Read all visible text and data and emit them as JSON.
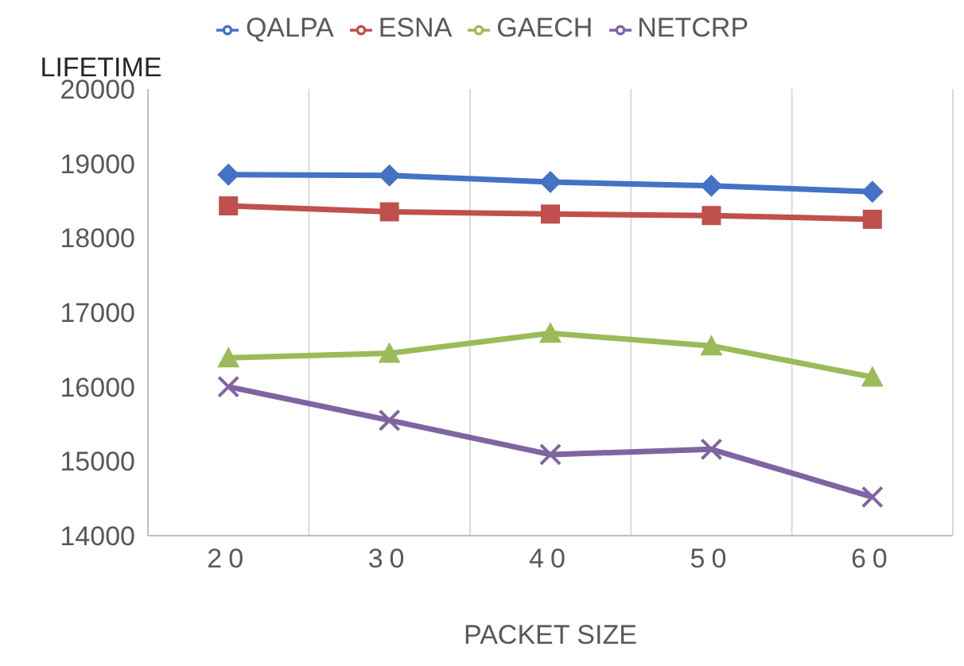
{
  "chart_data": {
    "type": "line",
    "ylabel": "LIFETIME",
    "xlabel": "PACKET SIZE",
    "categories": [
      "20",
      "30",
      "40",
      "50",
      "60"
    ],
    "series": [
      {
        "name": "QALPA",
        "color": "#4472c4",
        "marker": "diamond",
        "values": [
          18850,
          18840,
          18750,
          18700,
          18620
        ]
      },
      {
        "name": "ESNA",
        "color": "#c0504d",
        "marker": "square",
        "values": [
          18430,
          18350,
          18320,
          18300,
          18250
        ]
      },
      {
        "name": "GAECH",
        "color": "#9bbb59",
        "marker": "triangle",
        "values": [
          16390,
          16450,
          16720,
          16550,
          16130
        ]
      },
      {
        "name": "NETCRP",
        "color": "#8064a2",
        "marker": "cross",
        "values": [
          16000,
          15550,
          15090,
          15160,
          14520
        ]
      }
    ],
    "ylim": [
      14000,
      20000
    ],
    "yticks": [
      14000,
      15000,
      16000,
      17000,
      18000,
      19000,
      20000
    ],
    "grid": "x",
    "legend": "top"
  }
}
